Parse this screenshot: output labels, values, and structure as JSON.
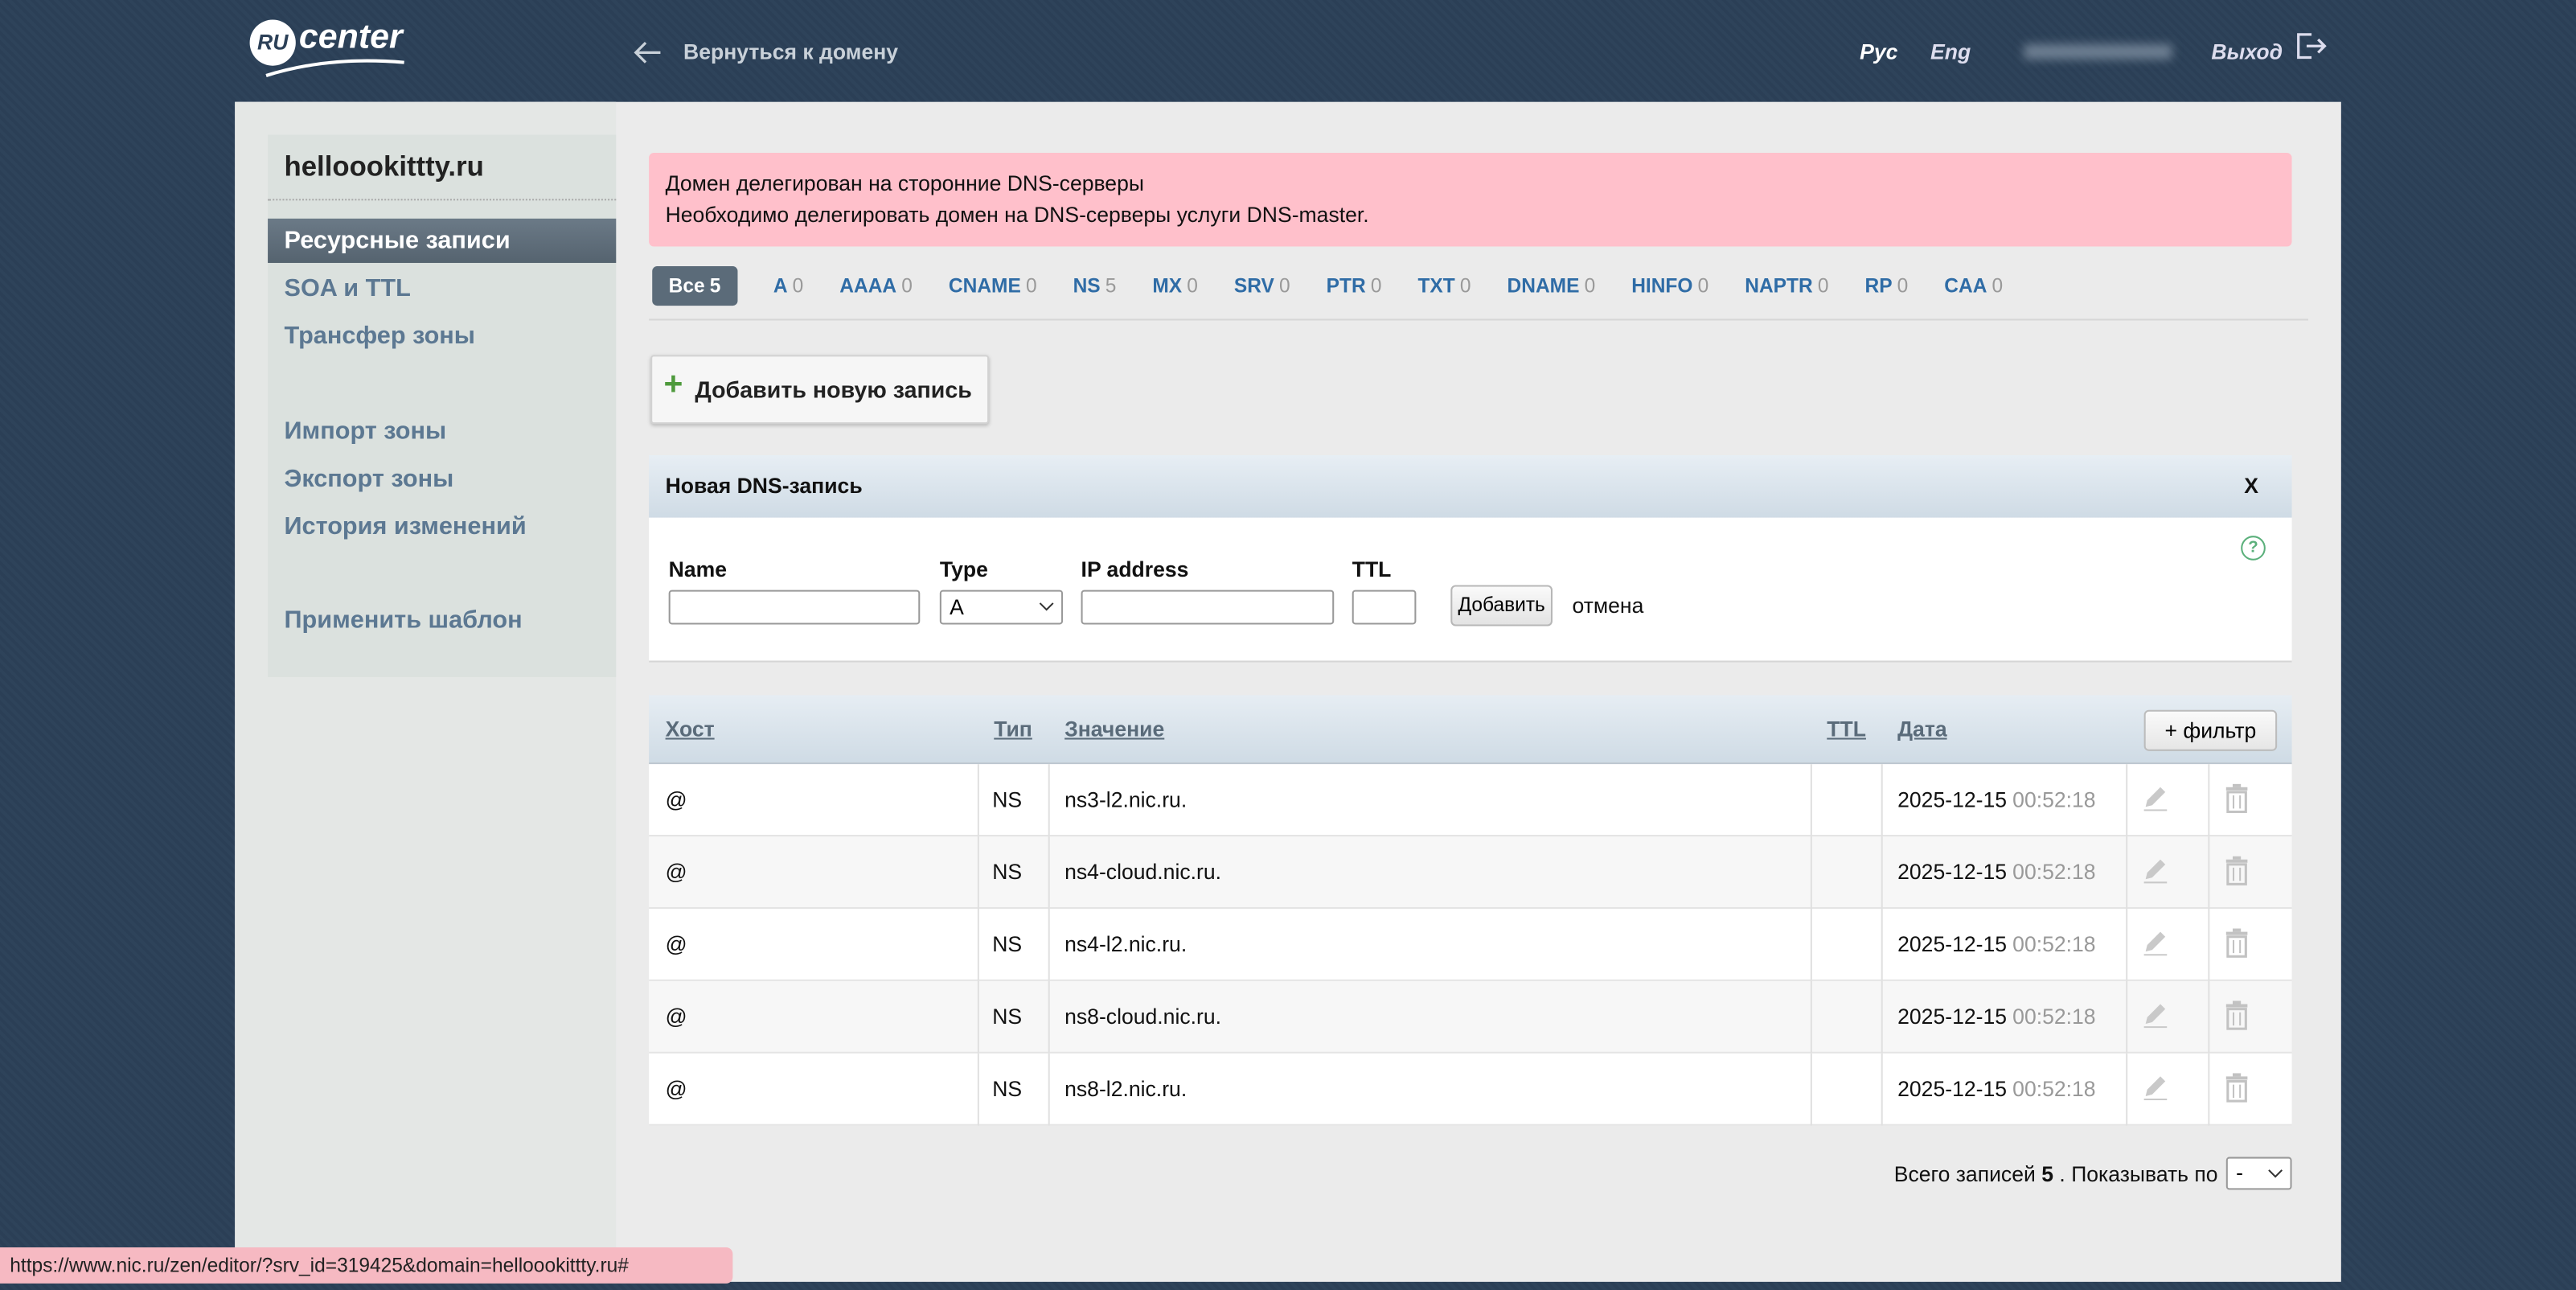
{
  "header": {
    "logo_badge": "RU",
    "logo_text": "center",
    "back_link": "Вернуться к домену",
    "lang_ru": "Рус",
    "lang_en": "Eng",
    "logout": "Выход"
  },
  "sidebar": {
    "domain": "helloookittty.ru",
    "menu": [
      "Ресурсные записи",
      "SOA и TTL",
      "Трансфер зоны",
      "Импорт зоны",
      "Экспорт зоны",
      "История изменений",
      "Применить шаблон"
    ]
  },
  "alert": {
    "line1": "Домен делегирован на сторонние DNS-серверы",
    "line2_prefix": "Необходимо",
    "line2_link1": "делегировать",
    "line2_middle": "домен на DNS-серверы",
    "line2_link2": "услуги DNS-master",
    "line2_suffix": "."
  },
  "tabs": [
    {
      "label": "Все",
      "count": 5
    },
    {
      "label": "A",
      "count": 0
    },
    {
      "label": "AAAA",
      "count": 0
    },
    {
      "label": "CNAME",
      "count": 0
    },
    {
      "label": "NS",
      "count": 5
    },
    {
      "label": "MX",
      "count": 0
    },
    {
      "label": "SRV",
      "count": 0
    },
    {
      "label": "PTR",
      "count": 0
    },
    {
      "label": "TXT",
      "count": 0
    },
    {
      "label": "DNAME",
      "count": 0
    },
    {
      "label": "HINFO",
      "count": 0
    },
    {
      "label": "NAPTR",
      "count": 0
    },
    {
      "label": "RP",
      "count": 0
    },
    {
      "label": "CAA",
      "count": 0
    }
  ],
  "add_button": "Добавить новую запись",
  "form": {
    "title": "Новая DNS-запись",
    "close": "X",
    "help": "?",
    "fields": [
      "Name",
      "Type",
      "IP address",
      "TTL"
    ],
    "type_value": "A",
    "submit": "Добавить",
    "cancel": "отмена"
  },
  "table": {
    "columns": [
      "Хост",
      "Тип",
      "Значение",
      "TTL",
      "Дата"
    ],
    "filter_button": "+ фильтр",
    "rows": [
      {
        "host": "@",
        "type": "NS",
        "value": "ns3-l2.nic.ru.",
        "date": "2025-12-15",
        "time": "00:52:18"
      },
      {
        "host": "@",
        "type": "NS",
        "value": "ns4-cloud.nic.ru.",
        "date": "2025-12-15",
        "time": "00:52:18"
      },
      {
        "host": "@",
        "type": "NS",
        "value": "ns4-l2.nic.ru.",
        "date": "2025-12-15",
        "time": "00:52:18"
      },
      {
        "host": "@",
        "type": "NS",
        "value": "ns8-cloud.nic.ru.",
        "date": "2025-12-15",
        "time": "00:52:18"
      },
      {
        "host": "@",
        "type": "NS",
        "value": "ns8-l2.nic.ru.",
        "date": "2025-12-15",
        "time": "00:52:18"
      }
    ]
  },
  "footer": {
    "total_label": "Всего записей",
    "total": 5,
    "per_page_label": ". Показывать по",
    "per_page_value": "-"
  },
  "status_bar": "https://www.nic.ru/zen/editor/?srv_id=319425&domain=helloookittty.ru#"
}
